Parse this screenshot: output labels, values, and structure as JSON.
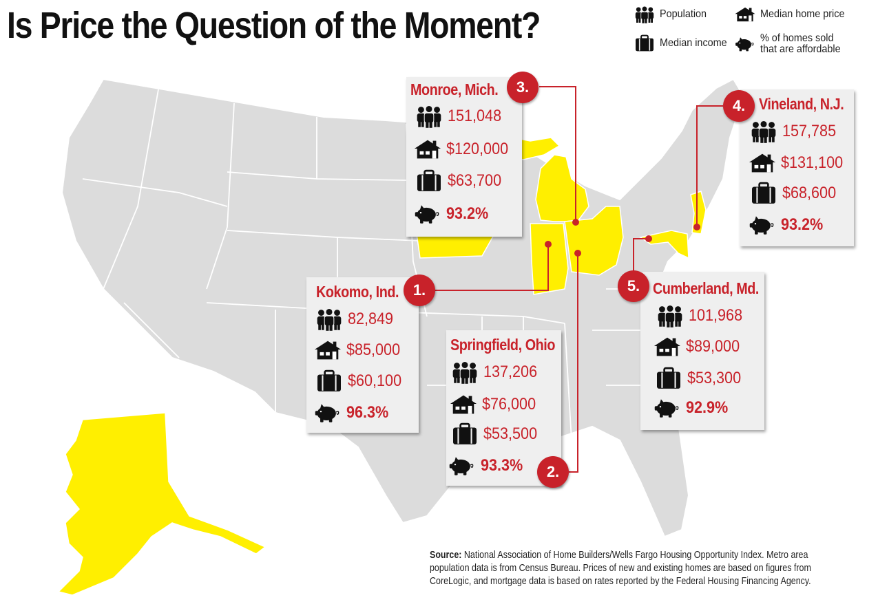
{
  "title": "Is Price the Question of the Moment?",
  "legend": {
    "population": "Population",
    "median_home_price": "Median home price",
    "median_income": "Median income",
    "affordable_line1": "% of homes sold",
    "affordable_line2": "that are affordable"
  },
  "icons": {
    "population": "people-icon",
    "median_home_price": "house-icon",
    "median_income": "briefcase-icon",
    "affordable": "piggy-bank-icon"
  },
  "colors": {
    "highlight_state": "#ffef00",
    "map_state": "#dcdcdc",
    "accent_red": "#c8222a",
    "card_bg": "#efefef"
  },
  "markers": [
    {
      "rank": "1.",
      "city": "Kokomo, Ind.",
      "population": "82,849",
      "median_home_price": "$85,000",
      "median_income": "$60,100",
      "affordable_pct": "96.3%"
    },
    {
      "rank": "2.",
      "city": "Springfield, Ohio",
      "population": "137,206",
      "median_home_price": "$76,000",
      "median_income": "$53,500",
      "affordable_pct": "93.3%"
    },
    {
      "rank": "3.",
      "city": "Monroe, Mich.",
      "population": "151,048",
      "median_home_price": "$120,000",
      "median_income": "$63,700",
      "affordable_pct": "93.2%"
    },
    {
      "rank": "4.",
      "city": "Vineland, N.J.",
      "population": "157,785",
      "median_home_price": "$131,100",
      "median_income": "$68,600",
      "affordable_pct": "93.2%"
    },
    {
      "rank": "5.",
      "city": "Cumberland, Md.",
      "population": "101,968",
      "median_home_price": "$89,000",
      "median_income": "$53,300",
      "affordable_pct": "92.9%"
    }
  ],
  "highlighted_states": [
    "Michigan",
    "Iowa",
    "Indiana",
    "Ohio",
    "Maryland",
    "New Jersey",
    "Alaska"
  ],
  "source": {
    "label": "Source:",
    "line1": "National Association of Home Builders/Wells Fargo Housing Opportunity Index. Metro area",
    "line2": "population data is from Census Bureau. Prices of new and existing homes are based on figures from",
    "line3": "CoreLogic, and mortgage data is based on rates reported by the Federal Housing Financing Agency."
  }
}
